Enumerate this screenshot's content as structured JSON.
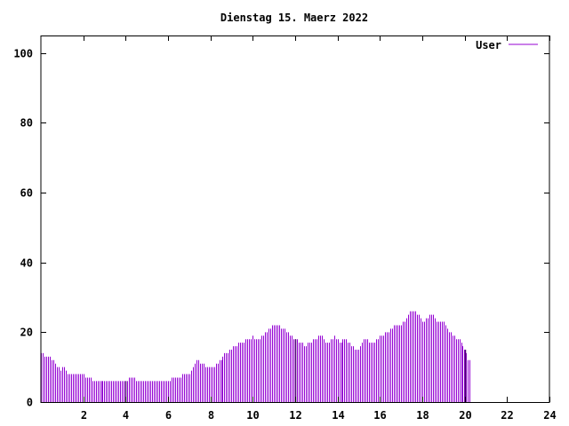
{
  "chart_data": {
    "type": "bar",
    "title": "Dienstag 15. Maerz 2022",
    "xlabel": "",
    "ylabel": "",
    "xlim": [
      0,
      24
    ],
    "ylim": [
      0,
      105
    ],
    "xticks": [
      2,
      4,
      6,
      8,
      10,
      12,
      14,
      16,
      18,
      20,
      22,
      24
    ],
    "yticks": [
      0,
      20,
      40,
      60,
      80,
      100
    ],
    "xtick_labels": [
      "2",
      "4",
      "6",
      "8",
      "10",
      "12",
      "14",
      "16",
      "18",
      "20",
      "22",
      "24"
    ],
    "ytick_labels": [
      "0",
      "20",
      "40",
      "60",
      "80",
      "100"
    ],
    "legend_position": "top-right",
    "grid": false,
    "series": [
      {
        "name": "User",
        "color": "#9400d3",
        "x_start": 0,
        "x_step": 0.0833,
        "values": [
          14,
          14,
          13,
          13,
          13,
          13,
          12,
          12,
          11,
          10,
          10,
          9,
          10,
          10,
          9,
          8,
          8,
          8,
          8,
          8,
          8,
          8,
          8,
          8,
          8,
          7,
          7,
          7,
          7,
          6,
          6,
          6,
          6,
          6,
          6,
          6,
          6,
          6,
          6,
          6,
          6,
          6,
          6,
          6,
          6,
          6,
          6,
          6,
          6,
          6,
          7,
          7,
          7,
          7,
          6,
          6,
          6,
          6,
          6,
          6,
          6,
          6,
          6,
          6,
          6,
          6,
          6,
          6,
          6,
          6,
          6,
          6,
          6,
          6,
          7,
          7,
          7,
          7,
          7,
          7,
          8,
          8,
          8,
          8,
          8,
          9,
          10,
          11,
          12,
          12,
          11,
          11,
          11,
          10,
          10,
          10,
          10,
          10,
          10,
          11,
          11,
          12,
          12,
          13,
          14,
          14,
          14,
          15,
          15,
          16,
          16,
          16,
          17,
          17,
          17,
          17,
          18,
          18,
          18,
          18,
          19,
          18,
          18,
          18,
          18,
          19,
          19,
          20,
          20,
          21,
          21,
          22,
          22,
          22,
          22,
          22,
          21,
          21,
          21,
          20,
          20,
          19,
          19,
          18,
          18,
          18,
          17,
          17,
          17,
          16,
          16,
          17,
          17,
          17,
          18,
          18,
          18,
          19,
          19,
          19,
          18,
          17,
          17,
          17,
          18,
          18,
          19,
          18,
          18,
          17,
          17,
          18,
          18,
          18,
          17,
          17,
          16,
          16,
          15,
          15,
          15,
          16,
          17,
          18,
          18,
          18,
          17,
          17,
          17,
          17,
          18,
          18,
          19,
          19,
          19,
          20,
          20,
          20,
          21,
          21,
          22,
          22,
          22,
          22,
          22,
          23,
          23,
          24,
          25,
          26,
          26,
          26,
          26,
          25,
          25,
          24,
          23,
          23,
          24,
          24,
          25,
          25,
          25,
          24,
          23,
          23,
          23,
          23,
          23,
          22,
          21,
          20,
          20,
          19,
          19,
          18,
          18,
          18,
          17,
          16,
          15,
          14,
          12,
          12
        ]
      }
    ],
    "highlight_bars": [
      4,
      12,
      20
    ]
  }
}
